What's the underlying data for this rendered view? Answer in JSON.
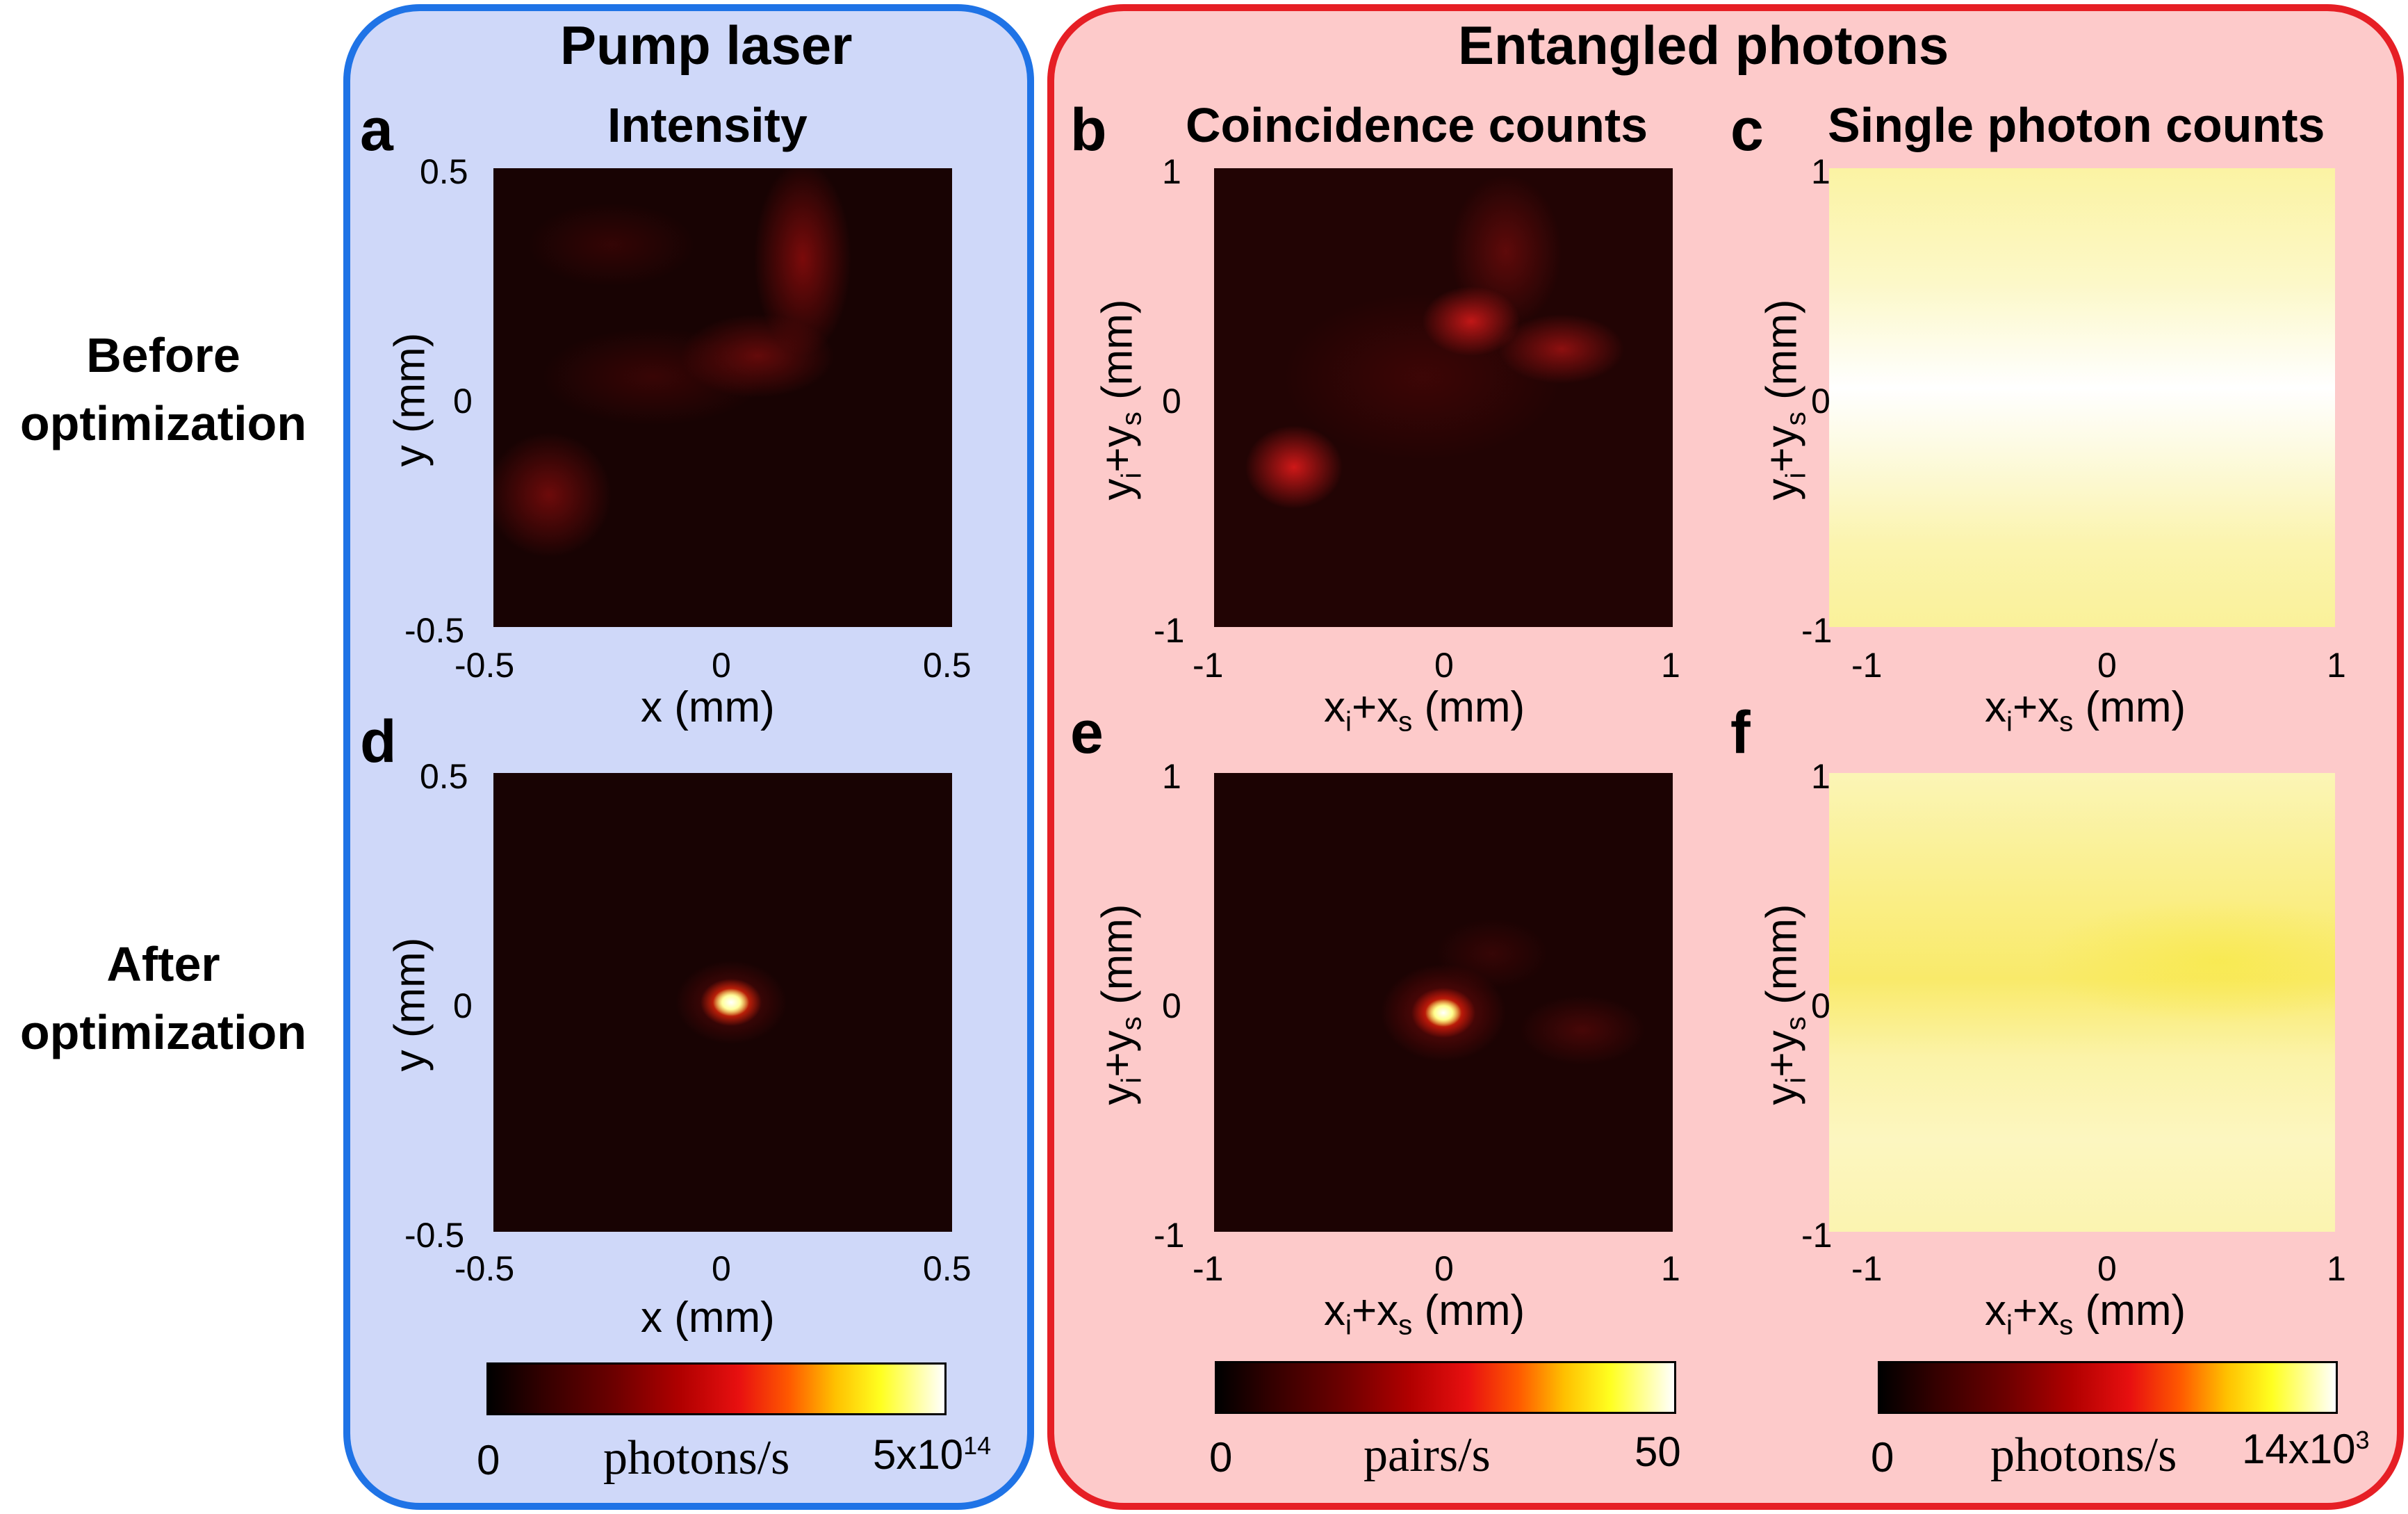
{
  "groups": {
    "pump": "Pump laser",
    "entangled": "Entangled photons"
  },
  "rows": {
    "before": [
      "Before",
      "optimization"
    ],
    "after": [
      "After",
      "optimization"
    ]
  },
  "columns": {
    "intensity": "Intensity",
    "coincidence": "Coincidence counts",
    "single": "Single photon counts"
  },
  "panel_letters": [
    "a",
    "b",
    "c",
    "d",
    "e",
    "f"
  ],
  "axes": {
    "pump_x_label": "x (mm)",
    "pump_y_label": "y (mm)",
    "pump_ticks": [
      "-0.5",
      "0",
      "0.5"
    ],
    "ent_x_label": "xi+xs (mm)",
    "ent_y_label": "yi+ys (mm)",
    "ent_ticks": [
      "-1",
      "0",
      "1"
    ]
  },
  "colorbars": {
    "pump": {
      "min": "0",
      "label": "photons/s",
      "max": "5x10",
      "max_exp": "14"
    },
    "coincidence": {
      "min": "0",
      "label": "pairs/s",
      "max": "50"
    },
    "single": {
      "min": "0",
      "label": "photons/s",
      "max": "14x10",
      "max_exp": "3"
    }
  },
  "chart_data": [
    {
      "type": "heatmap",
      "panel": "a",
      "title": "Intensity",
      "xlabel": "x (mm)",
      "ylabel": "y (mm)",
      "xlim": [
        -0.5,
        0.5
      ],
      "ylim": [
        -0.5,
        0.5
      ],
      "colorscale": "hot",
      "range": [
        0,
        500000000000000.0
      ],
      "unit": "photons/s",
      "description": "diffuse low-intensity speckle"
    },
    {
      "type": "heatmap",
      "panel": "b",
      "title": "Coincidence counts",
      "xlabel": "xi+xs (mm)",
      "ylabel": "yi+ys (mm)",
      "xlim": [
        -1,
        1
      ],
      "ylim": [
        -1,
        1
      ],
      "colorscale": "hot",
      "range": [
        0,
        50
      ],
      "unit": "pairs/s"
    },
    {
      "type": "heatmap",
      "panel": "c",
      "title": "Single photon counts",
      "xlabel": "xi+xs (mm)",
      "ylabel": "yi+ys (mm)",
      "xlim": [
        -1,
        1
      ],
      "ylim": [
        -1,
        1
      ],
      "colorscale": "hot",
      "range": [
        0,
        14000
      ],
      "unit": "photons/s"
    },
    {
      "type": "heatmap",
      "panel": "d",
      "xlabel": "x (mm)",
      "ylabel": "y (mm)",
      "xlim": [
        -0.5,
        0.5
      ],
      "ylim": [
        -0.5,
        0.5
      ],
      "colorscale": "hot",
      "range": [
        0,
        500000000000000.0
      ],
      "unit": "photons/s",
      "peak": [
        0.02,
        0.0
      ]
    },
    {
      "type": "heatmap",
      "panel": "e",
      "xlabel": "xi+xs (mm)",
      "ylabel": "yi+ys (mm)",
      "xlim": [
        -1,
        1
      ],
      "ylim": [
        -1,
        1
      ],
      "colorscale": "hot",
      "range": [
        0,
        50
      ],
      "unit": "pairs/s",
      "peak": [
        0.0,
        0.0
      ]
    },
    {
      "type": "heatmap",
      "panel": "f",
      "xlabel": "xi+xs (mm)",
      "ylabel": "yi+ys (mm)",
      "xlim": [
        -1,
        1
      ],
      "ylim": [
        -1,
        1
      ],
      "colorscale": "hot",
      "range": [
        0,
        14000
      ],
      "unit": "photons/s"
    }
  ],
  "colors": {
    "pump_box_fill": "#cfd8f9",
    "pump_box_border": "#1f73e6",
    "ent_box_fill": "#fdcaca",
    "ent_box_border": "#e61f25"
  }
}
